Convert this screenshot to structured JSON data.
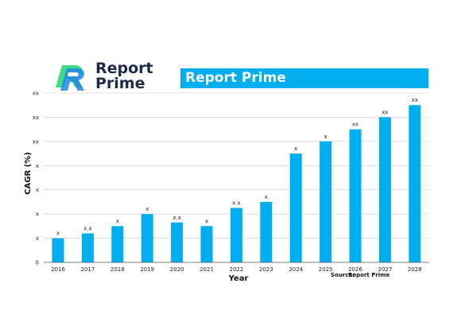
{
  "logo": {
    "line1": "Report",
    "line2": "Prime"
  },
  "banner": {
    "title": "Report Prime"
  },
  "colors": {
    "bar": "#00aeef",
    "banner": "#00aeef",
    "logo_text": "#1e2a4a",
    "logo_green": "#3ddc84",
    "logo_blue": "#1e88e5"
  },
  "chart_data": {
    "type": "bar",
    "xlabel": "Year",
    "ylabel": "CAGR (%)",
    "categories": [
      "2016",
      "2017",
      "2018",
      "2019",
      "2020",
      "2021",
      "2022",
      "2023",
      "2024",
      "2025",
      "2026",
      "2027",
      "2028"
    ],
    "values": [
      1,
      1.2,
      1.5,
      2,
      1.65,
      1.5,
      2.25,
      2.5,
      4.5,
      5,
      5.5,
      6,
      6.5
    ],
    "data_labels": [
      "x",
      "x.x",
      "x",
      "x",
      "x.x",
      "x",
      "x.x",
      "x",
      "x",
      "x",
      "xx",
      "xx",
      "xx"
    ],
    "ytick_labels": [
      "0",
      "x",
      "x",
      "x",
      "x",
      "xx",
      "xx",
      "xx"
    ],
    "ylim": [
      0,
      7
    ],
    "grid": true,
    "source_label": "Source:",
    "source_name": "Report Prime"
  }
}
